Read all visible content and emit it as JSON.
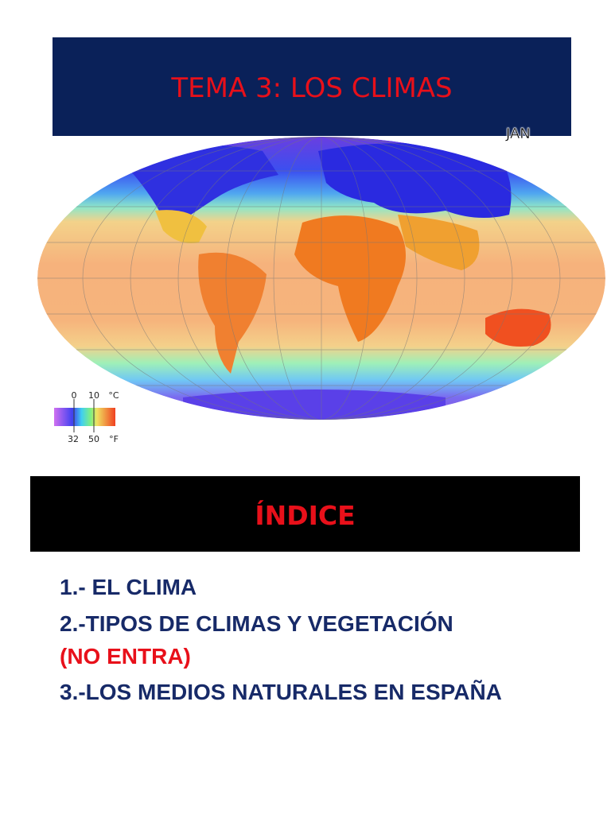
{
  "header": {
    "title": "TEMA 3: LOS CLIMAS"
  },
  "map": {
    "month": "JAN",
    "legend": {
      "celsius": [
        "0",
        "10"
      ],
      "celsius_unit": "°C",
      "fahrenheit": [
        "32",
        "50"
      ],
      "fahrenheit_unit": "°F"
    }
  },
  "index": {
    "title": "ÍNDICE",
    "items": [
      {
        "text": "1.- EL CLIMA"
      },
      {
        "text": "2.-TIPOS DE CLIMAS Y VEGETACIÓN",
        "note": "(NO ENTRA)"
      },
      {
        "text": "3.-LOS MEDIOS NATURALES EN ESPAÑA"
      }
    ]
  }
}
